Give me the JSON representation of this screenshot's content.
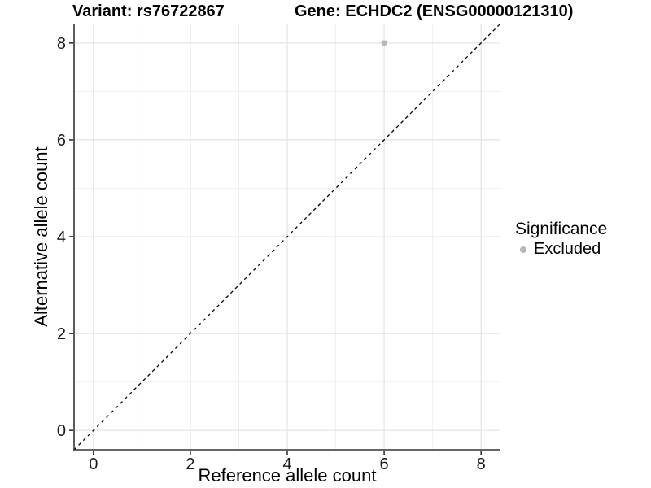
{
  "titles": {
    "left": "Variant: rs76722867",
    "right": "Gene: ECHDC2 (ENSG00000121310)"
  },
  "chart_data": {
    "type": "scatter",
    "xlabel": "Reference allele count",
    "ylabel": "Alternative allele count",
    "xlim": [
      -0.4,
      8.4
    ],
    "ylim": [
      -0.4,
      8.4
    ],
    "x_ticks": [
      0,
      2,
      4,
      6,
      8
    ],
    "y_ticks": [
      0,
      2,
      4,
      6,
      8
    ],
    "x_minor_ticks": [
      1,
      3,
      5,
      7
    ],
    "y_minor_ticks": [
      1,
      3,
      5,
      7
    ],
    "grid": true,
    "points": [
      {
        "x": 6,
        "y": 8,
        "series": "Excluded"
      }
    ],
    "reference_line": {
      "type": "identity",
      "slope": 1,
      "intercept": 0,
      "style": "dashed"
    },
    "legend": {
      "position": "right",
      "title": "Significance",
      "entries": [
        {
          "label": "Excluded",
          "color": "#b8b8b8"
        }
      ]
    }
  },
  "colors": {
    "background": "#ffffff",
    "point": "#b8b8b8",
    "grid_major": "#e3e3e3",
    "grid_minor": "#f0f0f0",
    "axis_line": "#333333",
    "tick_mark": "#333333",
    "tick_text": "#1a1a1a",
    "reference_line": "#000000",
    "text": "#000000"
  }
}
